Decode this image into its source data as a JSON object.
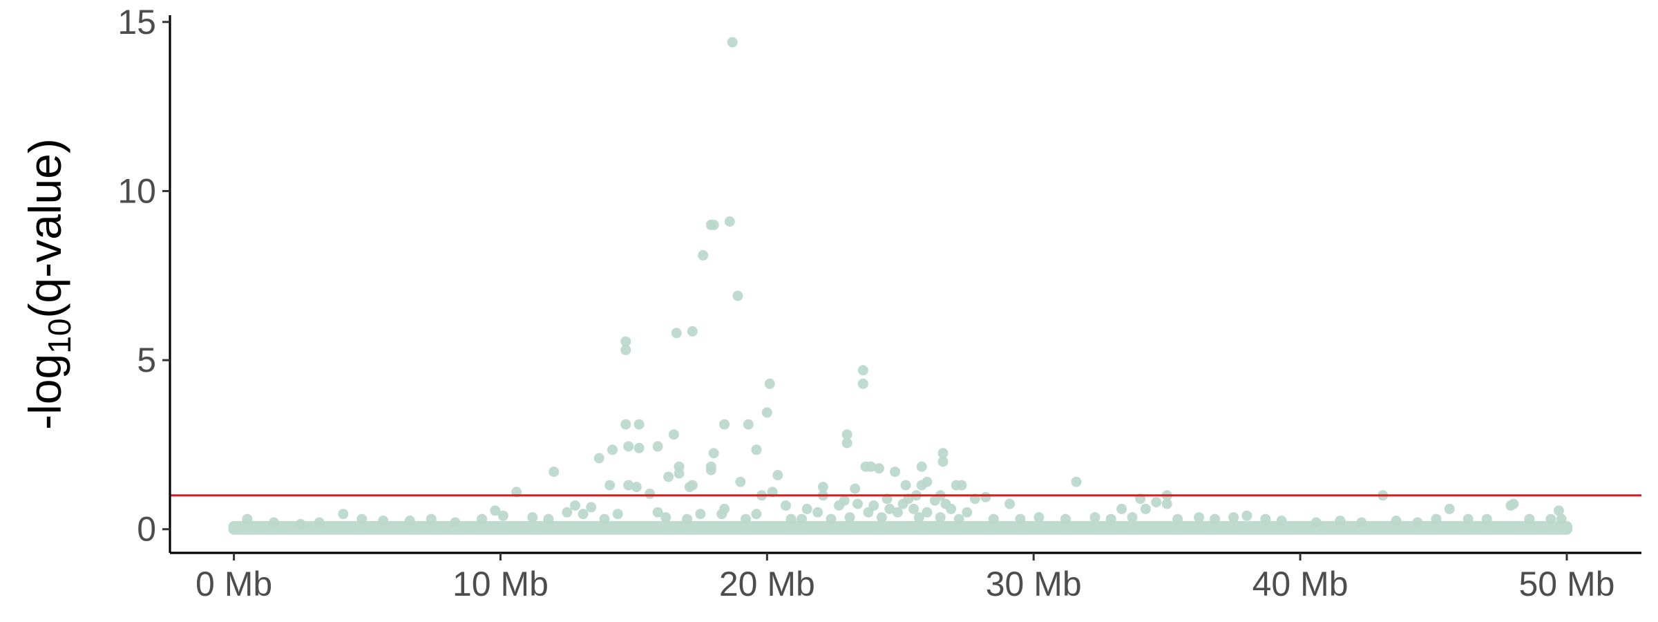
{
  "chart_data": {
    "type": "scatter",
    "title": "",
    "xlabel": "",
    "ylabel_main": "-log",
    "ylabel_sub": "10",
    "ylabel_tail": "(q-value)",
    "xlim": [
      -2.4,
      52.8
    ],
    "ylim": [
      -0.7,
      15.2
    ],
    "x_ticks": [
      {
        "value": 0,
        "label": "0 Mb"
      },
      {
        "value": 10,
        "label": "10 Mb"
      },
      {
        "value": 20,
        "label": "20 Mb"
      },
      {
        "value": 30,
        "label": "30 Mb"
      },
      {
        "value": 40,
        "label": "40 Mb"
      },
      {
        "value": 50,
        "label": "50 Mb"
      }
    ],
    "y_ticks": [
      {
        "value": 0,
        "label": "0"
      },
      {
        "value": 5,
        "label": "5"
      },
      {
        "value": 10,
        "label": "10"
      },
      {
        "value": 15,
        "label": "15"
      }
    ],
    "threshold": {
      "value": 1.0,
      "color": "#e31a1c"
    },
    "point_color": "#bcd8cc",
    "grid": false,
    "legend": "none",
    "points": [
      [
        18.7,
        14.4
      ],
      [
        17.9,
        9.0
      ],
      [
        18.0,
        9.0
      ],
      [
        18.6,
        9.1
      ],
      [
        17.6,
        8.1
      ],
      [
        18.9,
        6.9
      ],
      [
        16.6,
        5.8
      ],
      [
        17.2,
        5.85
      ],
      [
        14.7,
        5.55
      ],
      [
        14.7,
        5.3
      ],
      [
        23.6,
        4.7
      ],
      [
        23.6,
        4.3
      ],
      [
        20.1,
        4.3
      ],
      [
        20.0,
        3.45
      ],
      [
        18.4,
        3.1
      ],
      [
        19.3,
        3.1
      ],
      [
        14.7,
        3.1
      ],
      [
        15.2,
        3.1
      ],
      [
        23.0,
        2.8
      ],
      [
        23.0,
        2.55
      ],
      [
        16.5,
        2.8
      ],
      [
        14.8,
        2.45
      ],
      [
        15.2,
        2.4
      ],
      [
        15.9,
        2.45
      ],
      [
        14.2,
        2.35
      ],
      [
        19.6,
        2.35
      ],
      [
        26.6,
        2.25
      ],
      [
        26.6,
        2.0
      ],
      [
        18.0,
        2.25
      ],
      [
        13.7,
        2.1
      ],
      [
        17.9,
        1.85
      ],
      [
        16.7,
        1.85
      ],
      [
        23.7,
        1.85
      ],
      [
        23.9,
        1.85
      ],
      [
        24.2,
        1.8
      ],
      [
        25.8,
        1.85
      ],
      [
        24.8,
        1.7
      ],
      [
        12.0,
        1.7
      ],
      [
        17.9,
        1.75
      ],
      [
        16.7,
        1.65
      ],
      [
        20.4,
        1.6
      ],
      [
        16.3,
        1.55
      ],
      [
        19.0,
        1.4
      ],
      [
        26.0,
        1.4
      ],
      [
        31.6,
        1.4
      ],
      [
        25.8,
        1.3
      ],
      [
        14.1,
        1.3
      ],
      [
        14.8,
        1.3
      ],
      [
        15.1,
        1.25
      ],
      [
        17.1,
        1.25
      ],
      [
        17.2,
        1.3
      ],
      [
        22.1,
        1.25
      ],
      [
        23.3,
        1.2
      ],
      [
        25.2,
        1.3
      ],
      [
        27.1,
        1.3
      ],
      [
        27.3,
        1.3
      ],
      [
        10.6,
        1.1
      ],
      [
        15.6,
        1.05
      ],
      [
        19.8,
        1.0
      ],
      [
        20.2,
        1.1
      ],
      [
        22.1,
        1.0
      ],
      [
        25.6,
        1.0
      ],
      [
        26.5,
        1.0
      ],
      [
        35.0,
        1.0
      ],
      [
        43.1,
        1.0
      ],
      [
        34.0,
        0.9
      ],
      [
        28.2,
        0.95
      ],
      [
        22.9,
        0.85
      ],
      [
        24.5,
        0.9
      ],
      [
        25.3,
        0.9
      ],
      [
        26.3,
        0.85
      ],
      [
        27.8,
        0.9
      ],
      [
        34.6,
        0.8
      ],
      [
        35.0,
        0.75
      ],
      [
        23.4,
        0.75
      ],
      [
        25.1,
        0.75
      ],
      [
        26.7,
        0.75
      ],
      [
        29.1,
        0.75
      ],
      [
        12.8,
        0.7
      ],
      [
        20.7,
        0.7
      ],
      [
        22.7,
        0.7
      ],
      [
        24.0,
        0.7
      ],
      [
        47.9,
        0.7
      ],
      [
        48.0,
        0.75
      ],
      [
        13.4,
        0.65
      ],
      [
        18.4,
        0.6
      ],
      [
        21.5,
        0.6
      ],
      [
        24.6,
        0.6
      ],
      [
        25.5,
        0.6
      ],
      [
        26.9,
        0.6
      ],
      [
        33.3,
        0.6
      ],
      [
        34.2,
        0.6
      ],
      [
        45.6,
        0.6
      ],
      [
        49.7,
        0.55
      ],
      [
        9.8,
        0.55
      ],
      [
        4.1,
        0.45
      ],
      [
        12.5,
        0.5
      ],
      [
        13.1,
        0.45
      ],
      [
        14.4,
        0.45
      ],
      [
        15.9,
        0.5
      ],
      [
        17.5,
        0.45
      ],
      [
        18.3,
        0.45
      ],
      [
        19.6,
        0.45
      ],
      [
        21.9,
        0.5
      ],
      [
        23.8,
        0.5
      ],
      [
        24.9,
        0.5
      ],
      [
        26.0,
        0.5
      ],
      [
        27.5,
        0.5
      ],
      [
        30.2,
        0.35
      ],
      [
        32.3,
        0.35
      ],
      [
        36.2,
        0.35
      ],
      [
        38.0,
        0.4
      ],
      [
        10.1,
        0.4
      ],
      [
        11.2,
        0.35
      ],
      [
        0.5,
        0.3
      ],
      [
        1.5,
        0.2
      ],
      [
        2.5,
        0.15
      ],
      [
        3.2,
        0.2
      ],
      [
        4.8,
        0.3
      ],
      [
        5.6,
        0.25
      ],
      [
        6.6,
        0.25
      ],
      [
        7.4,
        0.3
      ],
      [
        8.3,
        0.2
      ],
      [
        9.3,
        0.3
      ],
      [
        11.8,
        0.3
      ],
      [
        13.9,
        0.3
      ],
      [
        16.2,
        0.35
      ],
      [
        17.0,
        0.3
      ],
      [
        19.2,
        0.3
      ],
      [
        20.9,
        0.3
      ],
      [
        21.3,
        0.3
      ],
      [
        22.4,
        0.3
      ],
      [
        23.1,
        0.35
      ],
      [
        24.3,
        0.35
      ],
      [
        25.7,
        0.35
      ],
      [
        26.5,
        0.35
      ],
      [
        27.2,
        0.3
      ],
      [
        28.5,
        0.3
      ],
      [
        29.5,
        0.3
      ],
      [
        31.2,
        0.3
      ],
      [
        32.9,
        0.3
      ],
      [
        33.7,
        0.35
      ],
      [
        35.4,
        0.3
      ],
      [
        36.8,
        0.3
      ],
      [
        37.5,
        0.35
      ],
      [
        38.7,
        0.3
      ],
      [
        39.3,
        0.25
      ],
      [
        40.6,
        0.2
      ],
      [
        41.5,
        0.25
      ],
      [
        42.3,
        0.2
      ],
      [
        43.6,
        0.25
      ],
      [
        44.4,
        0.2
      ],
      [
        45.1,
        0.3
      ],
      [
        46.3,
        0.3
      ],
      [
        47.0,
        0.3
      ],
      [
        48.6,
        0.3
      ],
      [
        49.4,
        0.3
      ],
      [
        49.8,
        0.3
      ]
    ]
  }
}
